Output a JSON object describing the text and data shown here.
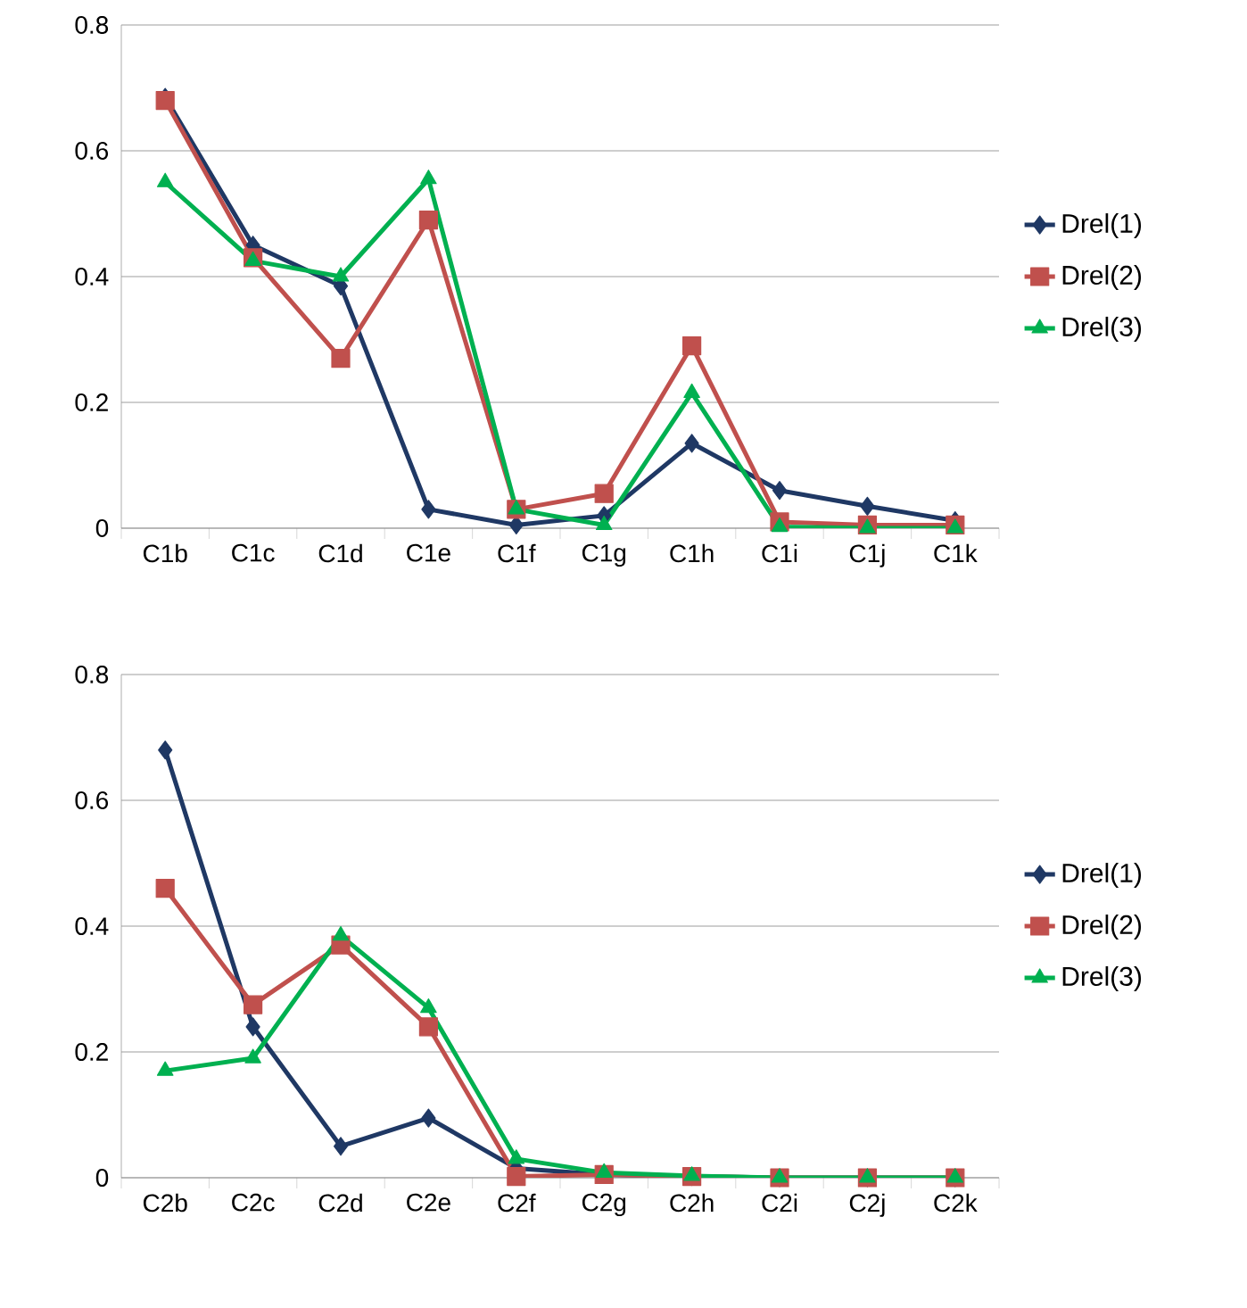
{
  "chart_data": [
    {
      "type": "line",
      "categories": [
        "C1b",
        "C1c",
        "C1d",
        "C1e",
        "C1f",
        "C1g",
        "C1h",
        "C1i",
        "C1j",
        "C1k"
      ],
      "ylim": [
        0,
        0.8
      ],
      "yticks": [
        0,
        0.2,
        0.4,
        0.6,
        0.8
      ],
      "grid": "y",
      "legend": "right",
      "line_style": "solid",
      "series": [
        {
          "name": "Drel(1)",
          "color": "#1f3864",
          "marker": "diamond",
          "values": [
            0.685,
            0.45,
            0.385,
            0.03,
            0.005,
            0.02,
            0.135,
            0.06,
            0.035,
            0.012
          ]
        },
        {
          "name": "Drel(2)",
          "color": "#c0504d",
          "marker": "square",
          "values": [
            0.68,
            0.43,
            0.27,
            0.49,
            0.03,
            0.055,
            0.29,
            0.01,
            0.005,
            0.005
          ]
        },
        {
          "name": "Drel(3)",
          "color": "#00b050",
          "marker": "triangle",
          "values": [
            0.55,
            0.425,
            0.4,
            0.555,
            0.03,
            0.005,
            0.215,
            0.002,
            0,
            0
          ]
        }
      ]
    },
    {
      "type": "line",
      "categories": [
        "C2b",
        "C2c",
        "C2d",
        "C2e",
        "C2f",
        "C2g",
        "C2h",
        "C2i",
        "C2j",
        "C2k"
      ],
      "ylim": [
        0,
        0.8
      ],
      "yticks": [
        0,
        0.2,
        0.4,
        0.6,
        0.8
      ],
      "grid": "y",
      "legend": "right",
      "line_style": "solid",
      "series": [
        {
          "name": "Drel(1)",
          "color": "#1f3864",
          "marker": "diamond",
          "values": [
            0.68,
            0.24,
            0.05,
            0.095,
            0.015,
            0.005,
            0.002,
            0,
            0,
            0
          ]
        },
        {
          "name": "Drel(2)",
          "color": "#c0504d",
          "marker": "square",
          "values": [
            0.46,
            0.275,
            0.37,
            0.24,
            0.002,
            0.005,
            0.002,
            0,
            0,
            0
          ]
        },
        {
          "name": "Drel(3)",
          "color": "#00b050",
          "marker": "triangle",
          "values": [
            0.17,
            0.19,
            0.385,
            0.27,
            0.03,
            0.008,
            0.003,
            0,
            0,
            0
          ]
        }
      ]
    }
  ]
}
